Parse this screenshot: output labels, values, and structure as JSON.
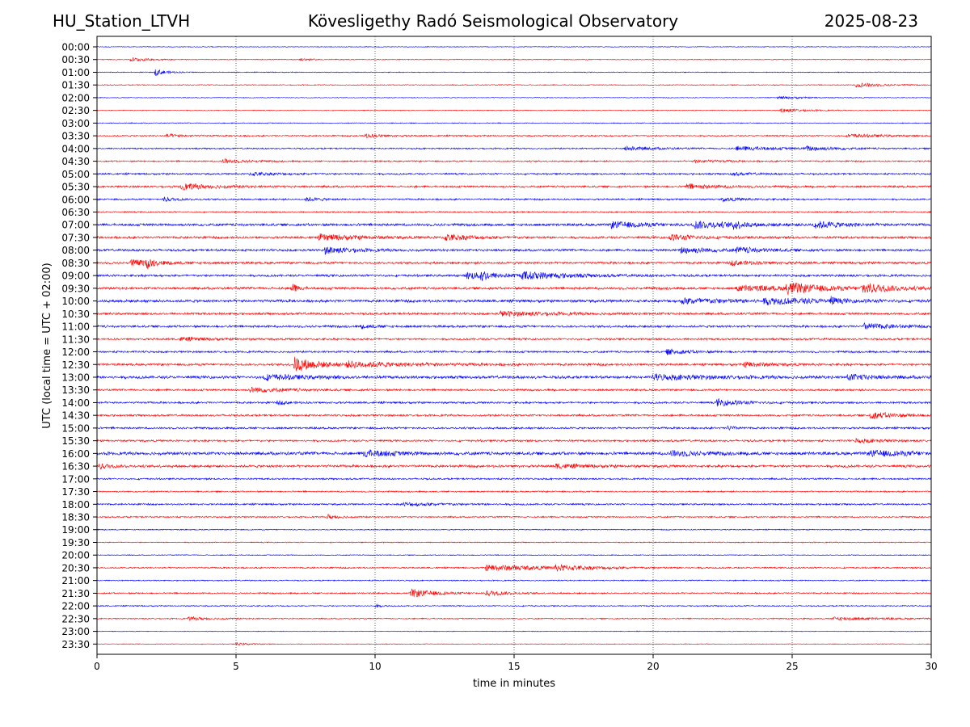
{
  "header": {
    "station": "HU_Station_LTVH",
    "title": "Kövesligethy Radó Seismological Observatory",
    "date": "2025-08-23"
  },
  "chart_data": {
    "type": "line",
    "subtype": "helicorder",
    "xlabel": "time in minutes",
    "ylabel": "UTC (local time = UTC + 02:00)",
    "xlim": [
      0,
      30
    ],
    "x_ticks": [
      0,
      5,
      10,
      15,
      20,
      25,
      30
    ],
    "x_gridlines": [
      5,
      10,
      15,
      20,
      25
    ],
    "grid": "vertical dotted",
    "row_labels": [
      "00:00",
      "00:30",
      "01:00",
      "01:30",
      "02:00",
      "02:30",
      "03:00",
      "03:30",
      "04:00",
      "04:30",
      "05:00",
      "05:30",
      "06:00",
      "06:30",
      "07:00",
      "07:30",
      "08:00",
      "08:30",
      "09:00",
      "09:30",
      "10:00",
      "10:30",
      "11:00",
      "11:30",
      "12:00",
      "12:30",
      "13:00",
      "13:30",
      "14:00",
      "14:30",
      "15:00",
      "15:30",
      "16:00",
      "16:30",
      "17:00",
      "17:30",
      "18:00",
      "18:30",
      "19:00",
      "19:30",
      "20:00",
      "20:30",
      "21:00",
      "21:30",
      "22:00",
      "22:30",
      "23:00",
      "23:30"
    ],
    "colors": {
      "even_rows": "#0000ff",
      "odd_rows": "#ff0000"
    },
    "traces": [
      {
        "noise": 0.5,
        "events": []
      },
      {
        "noise": 0.6,
        "events": [
          {
            "t": 1.2,
            "a": 2.5,
            "d": 0.6
          },
          {
            "t": 7.3,
            "a": 1.5,
            "d": 0.4
          }
        ]
      },
      {
        "noise": 0.6,
        "events": [
          {
            "t": 2.1,
            "a": 4,
            "d": 0.4
          }
        ]
      },
      {
        "noise": 0.6,
        "events": [
          {
            "t": 27.3,
            "a": 3,
            "d": 0.8
          }
        ]
      },
      {
        "noise": 0.5,
        "events": [
          {
            "t": 24.5,
            "a": 1.5,
            "d": 1
          }
        ]
      },
      {
        "noise": 0.6,
        "events": [
          {
            "t": 24.6,
            "a": 2.5,
            "d": 0.8
          }
        ]
      },
      {
        "noise": 0.6,
        "events": []
      },
      {
        "noise": 1,
        "events": [
          {
            "t": 2.5,
            "a": 2,
            "d": 0.6
          },
          {
            "t": 9.6,
            "a": 2.5,
            "d": 0.6
          },
          {
            "t": 27,
            "a": 2,
            "d": 1.2
          }
        ]
      },
      {
        "noise": 1,
        "events": [
          {
            "t": 19,
            "a": 2.5,
            "d": 1
          },
          {
            "t": 23,
            "a": 2.5,
            "d": 1.5
          },
          {
            "t": 25.5,
            "a": 2.5,
            "d": 1
          }
        ]
      },
      {
        "noise": 1,
        "events": [
          {
            "t": 4.5,
            "a": 2.5,
            "d": 0.8
          },
          {
            "t": 21.5,
            "a": 1.5,
            "d": 1
          }
        ]
      },
      {
        "noise": 1.2,
        "events": [
          {
            "t": 5.5,
            "a": 2,
            "d": 1
          },
          {
            "t": 22.8,
            "a": 1.5,
            "d": 0.8
          }
        ]
      },
      {
        "noise": 1.4,
        "events": [
          {
            "t": 3,
            "a": 3.5,
            "d": 1.2
          },
          {
            "t": 21.2,
            "a": 3,
            "d": 1
          }
        ]
      },
      {
        "noise": 1.2,
        "events": [
          {
            "t": 2.4,
            "a": 2.5,
            "d": 0.5
          },
          {
            "t": 7.5,
            "a": 2,
            "d": 0.6
          },
          {
            "t": 22.5,
            "a": 2,
            "d": 0.8
          }
        ]
      },
      {
        "noise": 1,
        "events": []
      },
      {
        "noise": 1.8,
        "events": [
          {
            "t": 18.5,
            "a": 3.5,
            "d": 1.2
          },
          {
            "t": 21.5,
            "a": 4,
            "d": 1.5
          },
          {
            "t": 22.9,
            "a": 5,
            "d": 0.2
          },
          {
            "t": 25.8,
            "a": 4,
            "d": 1
          }
        ]
      },
      {
        "noise": 1.6,
        "events": [
          {
            "t": 8,
            "a": 3.5,
            "d": 1.5
          },
          {
            "t": 12.5,
            "a": 3.5,
            "d": 1
          },
          {
            "t": 20.6,
            "a": 3.5,
            "d": 1
          }
        ]
      },
      {
        "noise": 1.6,
        "events": [
          {
            "t": 8.2,
            "a": 4,
            "d": 1
          },
          {
            "t": 21,
            "a": 4,
            "d": 1
          },
          {
            "t": 23,
            "a": 3,
            "d": 1
          }
        ]
      },
      {
        "noise": 1.6,
        "events": [
          {
            "t": 1.2,
            "a": 3.5,
            "d": 1
          },
          {
            "t": 1.8,
            "a": 5,
            "d": 0.2
          },
          {
            "t": 22.8,
            "a": 2.5,
            "d": 1
          }
        ]
      },
      {
        "noise": 1.6,
        "events": [
          {
            "t": 13.3,
            "a": 3.5,
            "d": 1.5
          },
          {
            "t": 13.8,
            "a": 6,
            "d": 0.2
          },
          {
            "t": 15.3,
            "a": 4,
            "d": 1.5
          }
        ]
      },
      {
        "noise": 1.8,
        "events": [
          {
            "t": 7,
            "a": 6,
            "d": 0.2
          },
          {
            "t": 23,
            "a": 3,
            "d": 2
          },
          {
            "t": 24.8,
            "a": 6,
            "d": 1
          },
          {
            "t": 27.5,
            "a": 6,
            "d": 1
          }
        ]
      },
      {
        "noise": 2,
        "events": [
          {
            "t": 21,
            "a": 3,
            "d": 2
          },
          {
            "t": 24,
            "a": 3,
            "d": 2
          },
          {
            "t": 26.4,
            "a": 4,
            "d": 0.2
          }
        ]
      },
      {
        "noise": 1.6,
        "events": [
          {
            "t": 14.5,
            "a": 2.5,
            "d": 2
          }
        ]
      },
      {
        "noise": 1.6,
        "events": [
          {
            "t": 9.5,
            "a": 2,
            "d": 0.5
          },
          {
            "t": 27.6,
            "a": 3.5,
            "d": 1
          }
        ]
      },
      {
        "noise": 1.4,
        "events": [
          {
            "t": 3,
            "a": 2,
            "d": 1
          }
        ]
      },
      {
        "noise": 1.4,
        "events": [
          {
            "t": 20.5,
            "a": 3,
            "d": 0.8
          }
        ]
      },
      {
        "noise": 1.6,
        "events": [
          {
            "t": 7.1,
            "a": 9,
            "d": 0.8
          },
          {
            "t": 9,
            "a": 3,
            "d": 2.5
          },
          {
            "t": 23.3,
            "a": 3,
            "d": 0.8
          }
        ]
      },
      {
        "noise": 2,
        "events": [
          {
            "t": 6,
            "a": 3,
            "d": 1.5
          },
          {
            "t": 20,
            "a": 3,
            "d": 2
          },
          {
            "t": 27,
            "a": 3,
            "d": 1
          }
        ]
      },
      {
        "noise": 1.4,
        "events": [
          {
            "t": 5.5,
            "a": 3,
            "d": 1.2
          }
        ]
      },
      {
        "noise": 1.4,
        "events": [
          {
            "t": 6.5,
            "a": 2,
            "d": 0.4
          },
          {
            "t": 22.3,
            "a": 4,
            "d": 0.8
          }
        ]
      },
      {
        "noise": 1.4,
        "events": [
          {
            "t": 27.8,
            "a": 4,
            "d": 1
          }
        ]
      },
      {
        "noise": 1.4,
        "events": [
          {
            "t": 22.7,
            "a": 3,
            "d": 0.2
          }
        ]
      },
      {
        "noise": 1.4,
        "events": [
          {
            "t": 27.3,
            "a": 2.5,
            "d": 0.8
          }
        ]
      },
      {
        "noise": 2.2,
        "events": [
          {
            "t": 9.6,
            "a": 4,
            "d": 1
          },
          {
            "t": 20.6,
            "a": 3,
            "d": 1
          },
          {
            "t": 27.8,
            "a": 3,
            "d": 1.5
          }
        ]
      },
      {
        "noise": 1.8,
        "events": [
          {
            "t": 0.1,
            "a": 3,
            "d": 0.4
          },
          {
            "t": 16.5,
            "a": 2.5,
            "d": 1
          }
        ]
      },
      {
        "noise": 1.2,
        "events": []
      },
      {
        "noise": 1,
        "events": []
      },
      {
        "noise": 1.2,
        "events": [
          {
            "t": 11,
            "a": 2,
            "d": 1.5
          }
        ]
      },
      {
        "noise": 1,
        "events": [
          {
            "t": 8.3,
            "a": 3,
            "d": 0.4
          }
        ]
      },
      {
        "noise": 0.7,
        "events": []
      },
      {
        "noise": 0.7,
        "events": []
      },
      {
        "noise": 0.6,
        "events": []
      },
      {
        "noise": 1,
        "events": [
          {
            "t": 14,
            "a": 3.5,
            "d": 2.5
          },
          {
            "t": 16.5,
            "a": 2.5,
            "d": 1
          }
        ]
      },
      {
        "noise": 0.8,
        "events": []
      },
      {
        "noise": 1,
        "events": [
          {
            "t": 11.3,
            "a": 5,
            "d": 0.8
          },
          {
            "t": 14,
            "a": 3,
            "d": 0.8
          }
        ]
      },
      {
        "noise": 0.8,
        "events": [
          {
            "t": 10,
            "a": 2,
            "d": 0.2
          }
        ]
      },
      {
        "noise": 0.8,
        "events": [
          {
            "t": 3.3,
            "a": 2,
            "d": 0.8
          },
          {
            "t": 26.5,
            "a": 2,
            "d": 1.5
          }
        ]
      },
      {
        "noise": 0.5,
        "events": []
      },
      {
        "noise": 0.5,
        "events": [
          {
            "t": 5,
            "a": 1.5,
            "d": 0.5
          }
        ]
      }
    ]
  }
}
